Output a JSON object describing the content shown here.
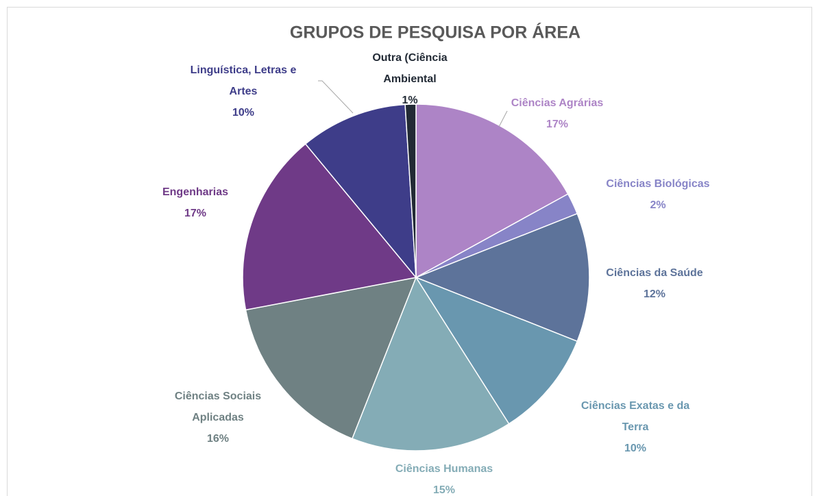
{
  "chart_data": {
    "type": "pie",
    "title": "GRUPOS DE PESQUISA POR ÁREA",
    "categories": [
      "Ciências Agrárias",
      "Ciências Biológicas",
      "Ciências da Saúde",
      "Ciências Exatas e da Terra",
      "Ciências Humanas",
      "Ciências Sociais Aplicadas",
      "Engenharias",
      "Linguística, Letras e Artes",
      "Outra (Ciência Ambiental"
    ],
    "values": [
      17,
      2,
      12,
      10,
      15,
      16,
      17,
      10,
      1
    ],
    "value_labels": [
      "17%",
      "2%",
      "12%",
      "10%",
      "15%",
      "16%",
      "17%",
      "10%",
      "1%"
    ],
    "colors": [
      "#ad84c6",
      "#8784c7",
      "#5d739a",
      "#6997af",
      "#84acb6",
      "#6f8183",
      "#6f3a87",
      "#3e3d89",
      "#222a35"
    ]
  }
}
